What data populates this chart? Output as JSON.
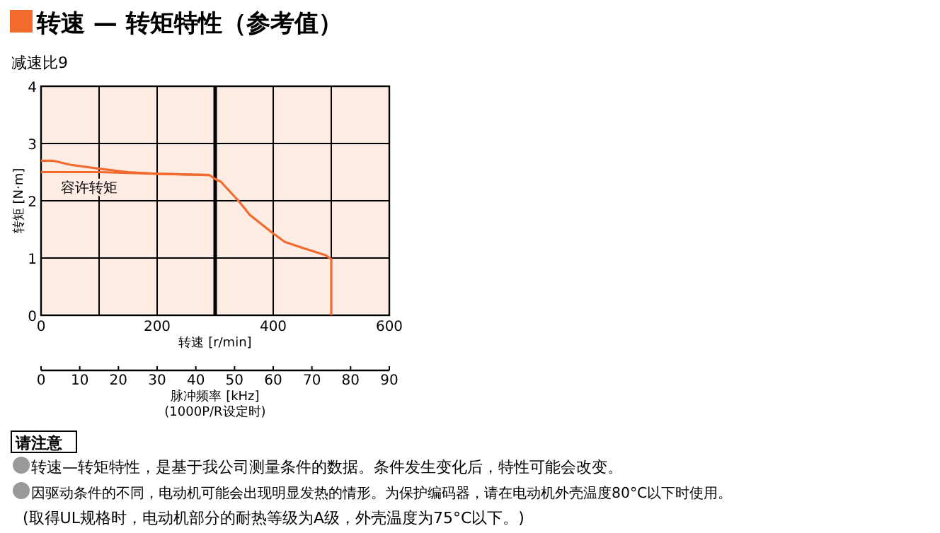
{
  "chart_data": {
    "type": "line",
    "title": "转速 — 转矩特性（参考值）",
    "subtitle": "减速比9",
    "xlabel": "转速 [r/min]",
    "ylabel": "转矩 [N·m]",
    "x2label": "脉冲频率 [kHz]",
    "xlim": [
      0,
      600
    ],
    "xticks": [
      0,
      200,
      400,
      600
    ],
    "ylim": [
      0,
      4
    ],
    "yticks": [
      0,
      1,
      2,
      3,
      4
    ],
    "x2lim": [
      0,
      90
    ],
    "x2ticks": [
      0,
      10,
      20,
      30,
      40,
      50,
      60,
      70,
      80,
      90
    ],
    "grid": true,
    "line_style": "solid",
    "marker": "none",
    "ref_lines": [
      {
        "axis": "x",
        "value": 300,
        "color": "#000000"
      }
    ],
    "series": [
      {
        "color": "#f26b2d",
        "x": [
          0,
          20,
          50,
          100,
          150,
          200,
          290,
          300,
          310,
          340,
          360,
          400,
          420,
          450,
          490,
          500,
          500
        ],
        "values": [
          2.7,
          2.7,
          2.63,
          2.56,
          2.5,
          2.47,
          2.45,
          2.38,
          2.33,
          2.0,
          1.75,
          1.43,
          1.28,
          1.18,
          1.05,
          0.98,
          0
        ]
      },
      {
        "name": "容许转矩",
        "color": "#f26b2d",
        "x": [
          0,
          100,
          200,
          290
        ],
        "values": [
          2.5,
          2.5,
          2.47,
          2.45
        ]
      }
    ],
    "annotations": [
      "(1000P/R设定时)",
      "请注意",
      "转速—转矩特性，是基于我公司测量条件的数据。条件发生变化后，特性可能会改变。",
      "因驱动条件的不同，电动机可能会出现明显发热的情形。为保护编码器，请在电动机外壳温度80°C以下时使用。",
      "(取得UL规格时，电动机部分的耐热等级为A级，外壳温度为75°C以下。)"
    ]
  }
}
